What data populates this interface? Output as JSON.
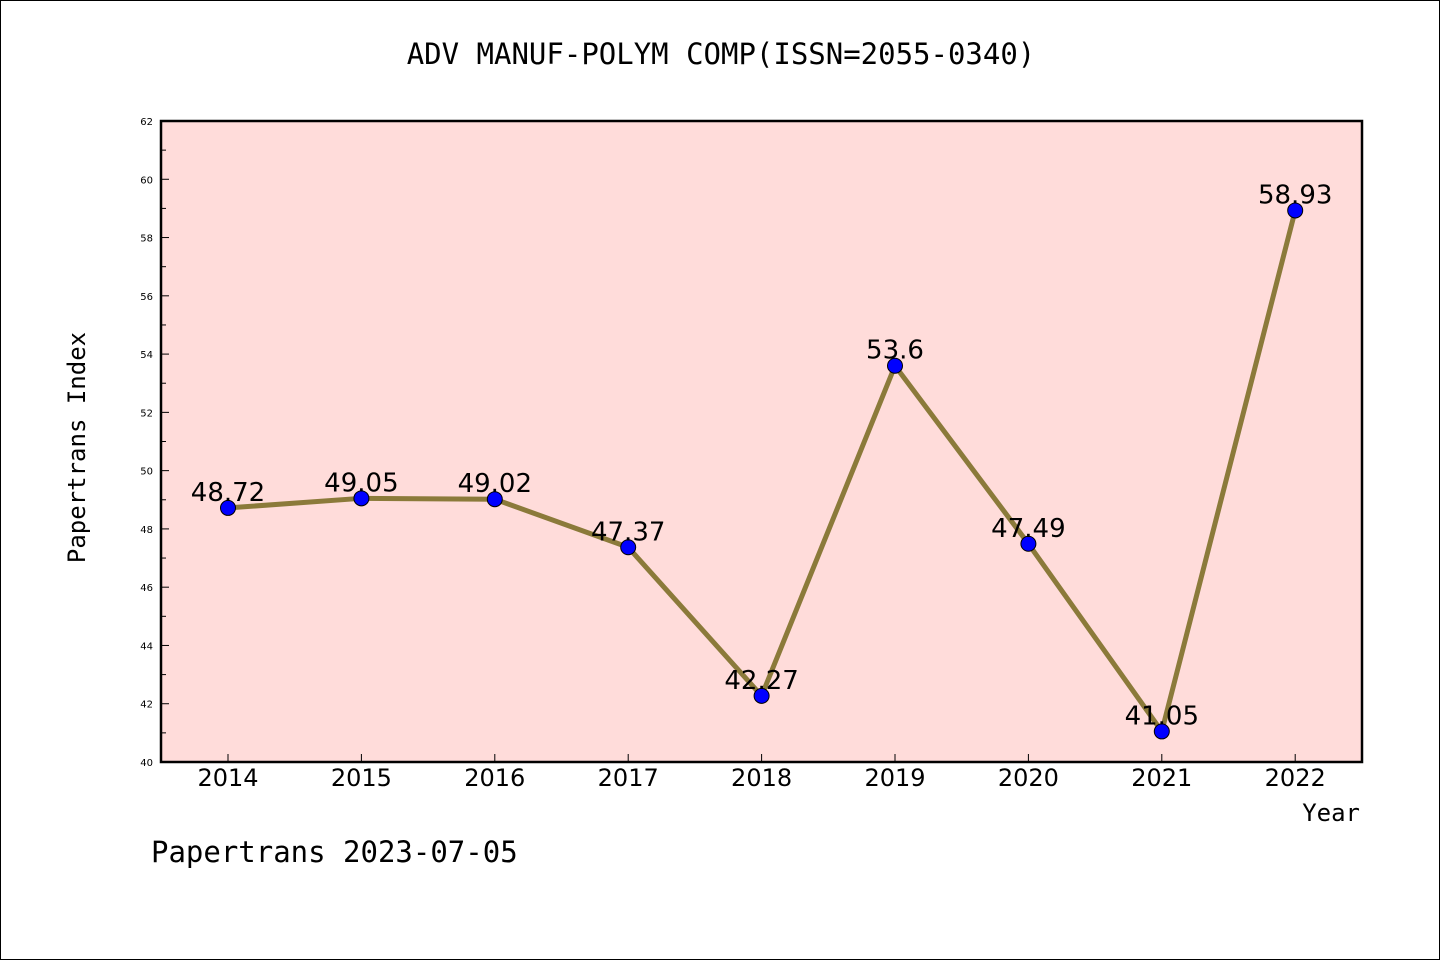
{
  "chart_data": {
    "type": "line",
    "title": "ADV MANUF-POLYM COMP(ISSN=2055-0340)",
    "xlabel": "Year",
    "ylabel": "Papertrans Index",
    "categories": [
      "2014",
      "2015",
      "2016",
      "2017",
      "2018",
      "2019",
      "2020",
      "2021",
      "2022"
    ],
    "series": [
      {
        "values": [
          48.72,
          49.05,
          49.02,
          47.37,
          42.27,
          53.6,
          47.49,
          41.05,
          58.93
        ],
        "labels": [
          "48.72",
          "49.05",
          "49.02",
          "47.37",
          "42.27",
          "53.6",
          "47.49",
          "41.05",
          "58.93"
        ]
      }
    ],
    "ylim": [
      40,
      62
    ],
    "yticks": [
      "40",
      "42",
      "44",
      "46",
      "48",
      "50",
      "52",
      "54",
      "56",
      "58",
      "60",
      "62"
    ],
    "grid": false,
    "colors": {
      "plot_background": "#ffdcda",
      "line": "#8b7a3a",
      "marker": "#0000ff"
    }
  },
  "footer": "Papertrans 2023-07-05"
}
